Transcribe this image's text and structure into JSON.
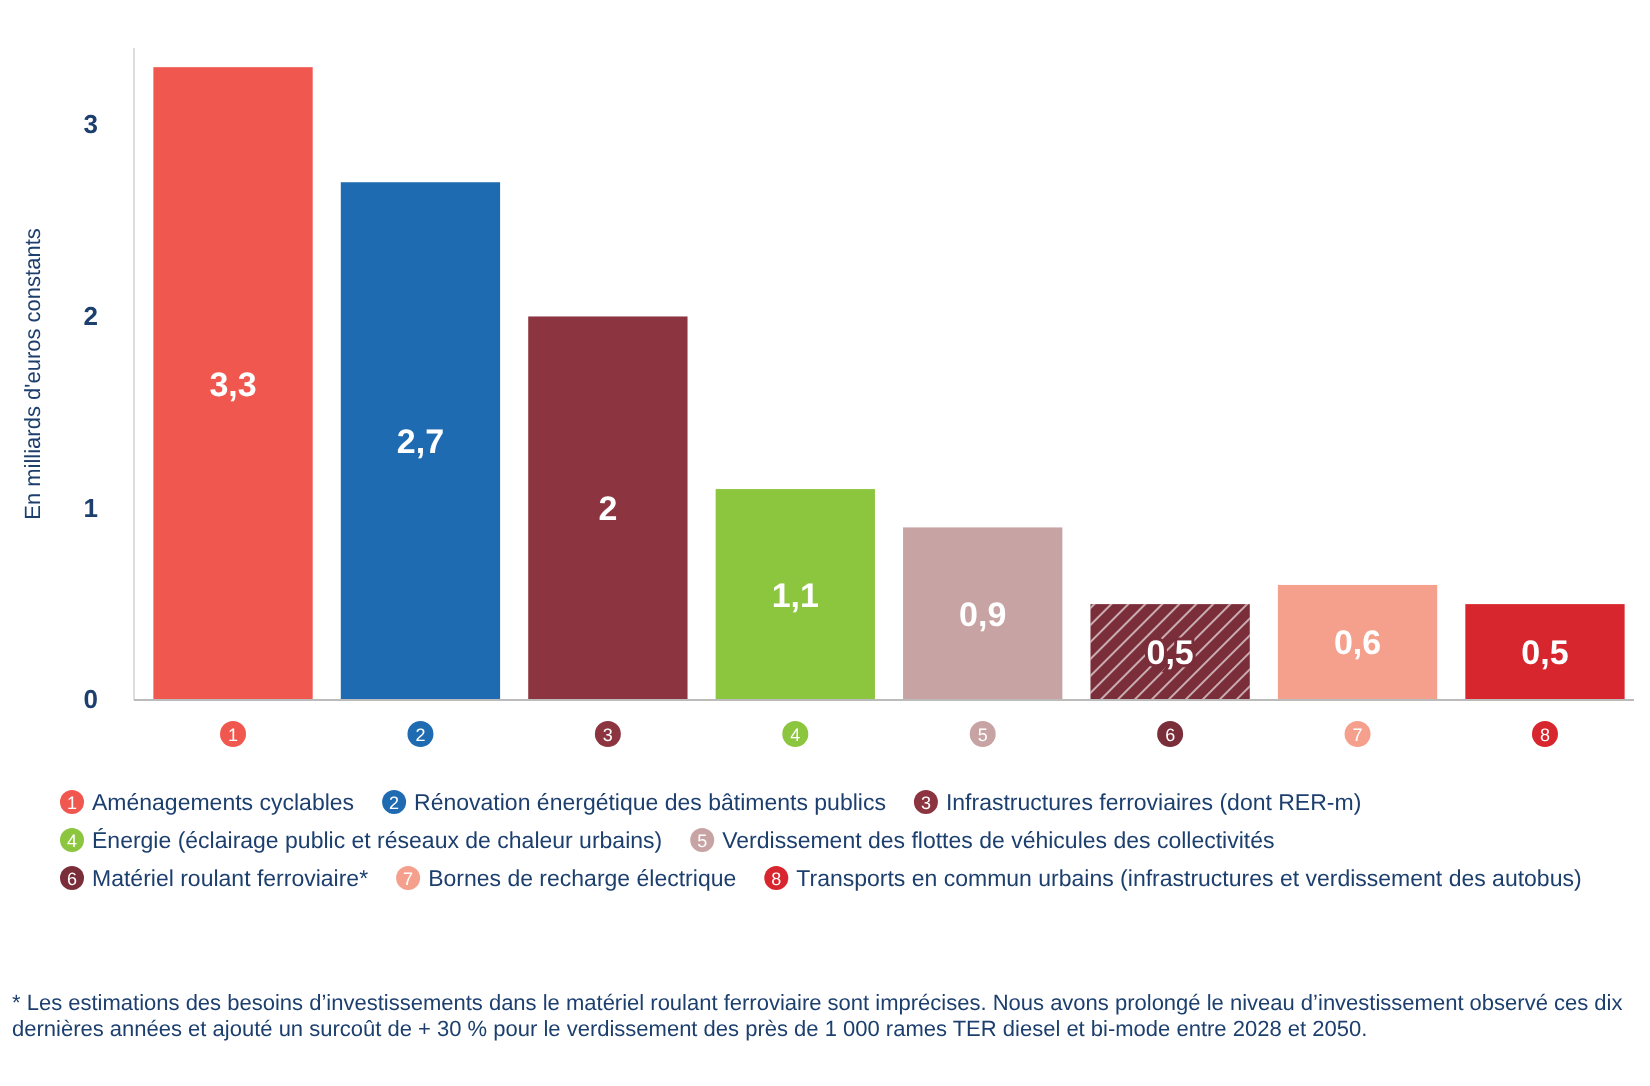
{
  "chart_data": {
    "type": "bar",
    "ylabel": "En milliards d'euros constants",
    "categories": [
      "1",
      "2",
      "3",
      "4",
      "5",
      "6",
      "7",
      "8"
    ],
    "stacked": true,
    "series": [
      {
        "name": "Aménagements cyclables",
        "color": "#f0574f",
        "values": [
          3.3,
          null,
          null,
          null,
          null,
          null,
          null,
          null
        ],
        "value_labels": [
          "3,3",
          null,
          null,
          null,
          null,
          null,
          null,
          null
        ]
      },
      {
        "name": "Rénovation énergétique des bâtiments publics",
        "color": "#1f6bb2",
        "values": [
          null,
          2.7,
          null,
          null,
          null,
          null,
          null,
          null
        ],
        "value_labels": [
          null,
          "2,7",
          null,
          null,
          null,
          null,
          null,
          null
        ]
      },
      {
        "name": "Infrastructures ferroviaires (dont RER-m)",
        "color": "#8c3440",
        "values": [
          null,
          null,
          2,
          null,
          null,
          null,
          null,
          null
        ],
        "value_labels": [
          null,
          null,
          "2",
          null,
          null,
          null,
          null,
          null
        ]
      },
      {
        "name": "Énergie (éclairage public et réseaux de chaleur urbains)",
        "color": "#8cc63f",
        "values": [
          null,
          null,
          null,
          1.1,
          null,
          null,
          null,
          null
        ],
        "value_labels": [
          null,
          null,
          null,
          "1,1",
          null,
          null,
          null,
          null
        ]
      },
      {
        "name": "Verdissement des flottes de véhicules des collectivités",
        "color": "#c8a3a3",
        "values": [
          null,
          null,
          null,
          null,
          0.9,
          null,
          null,
          null
        ],
        "value_labels": [
          null,
          null,
          null,
          null,
          "0,9",
          null,
          null,
          null
        ]
      },
      {
        "name": "Matériel roulant ferroviaire*",
        "color": "#7a2e3a",
        "values": [
          null,
          null,
          null,
          null,
          null,
          0.5,
          null,
          null
        ],
        "value_labels": [
          null,
          null,
          null,
          null,
          null,
          "0,5",
          null,
          null
        ]
      },
      {
        "name": "Bornes de recharge électrique",
        "color": "#f4a08c",
        "values": [
          null,
          null,
          null,
          null,
          null,
          null,
          0.6,
          null
        ],
        "value_labels": [
          null,
          null,
          null,
          null,
          null,
          null,
          "0,6",
          null
        ]
      },
      {
        "name": "Transports en commun urbains (infrastructures et verdissement des autobus)",
        "color": "#d7262e",
        "values": [
          null,
          null,
          null,
          null,
          null,
          null,
          null,
          0.5
        ],
        "value_labels": [
          null,
          null,
          null,
          null,
          null,
          null,
          null,
          "0,5"
        ]
      }
    ],
    "ylim": [
      0,
      3.4
    ],
    "yticks": [
      0,
      1,
      2,
      3
    ],
    "legend": "bottom",
    "annotations": [
      "* Les estimations des besoins d’investissements dans le matériel roulant ferroviaire sont imprécises. Nous avons prolongé le niveau d’investissement observé ces dix dernières années et ajouté un surcoût de + 30 % pour le verdissement des près de 1 000 rames TER diesel et bi-mode entre 2028 et 2050."
    ]
  }
}
